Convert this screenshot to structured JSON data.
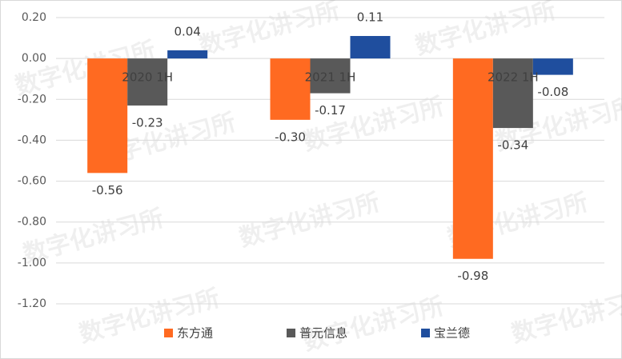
{
  "chart_data": {
    "type": "bar",
    "watermark": "数字化讲习所",
    "categories": [
      "2020 1H",
      "2021 1H",
      "2022 1H"
    ],
    "series": [
      {
        "name": "东方通",
        "color": "#ff6a21",
        "values": [
          -0.56,
          -0.3,
          -0.98
        ],
        "value_labels": [
          "-0.56",
          "-0.30",
          "-0.98"
        ]
      },
      {
        "name": "普元信息",
        "color": "#595959",
        "values": [
          -0.23,
          -0.17,
          -0.34
        ],
        "value_labels": [
          "-0.23",
          "-0.17",
          "-0.34"
        ]
      },
      {
        "name": "宝兰德",
        "color": "#1f4e9e",
        "values": [
          0.04,
          0.11,
          -0.08
        ],
        "value_labels": [
          "0.04",
          "0.11",
          "-0.08"
        ]
      }
    ],
    "ylim": [
      -1.2,
      0.2
    ],
    "yticks": [
      {
        "value": 0.2,
        "label": "0.20"
      },
      {
        "value": 0,
        "label": "0.00"
      },
      {
        "value": -0.2,
        "label": "-0.20"
      },
      {
        "value": -0.4,
        "label": "-0.40"
      },
      {
        "value": -0.6,
        "label": "-0.60"
      },
      {
        "value": -0.8,
        "label": "-0.80"
      },
      {
        "value": -1.0,
        "label": "-1.00"
      },
      {
        "value": -1.2,
        "label": "-1.20"
      }
    ],
    "grid": true,
    "legend": "bottom"
  }
}
